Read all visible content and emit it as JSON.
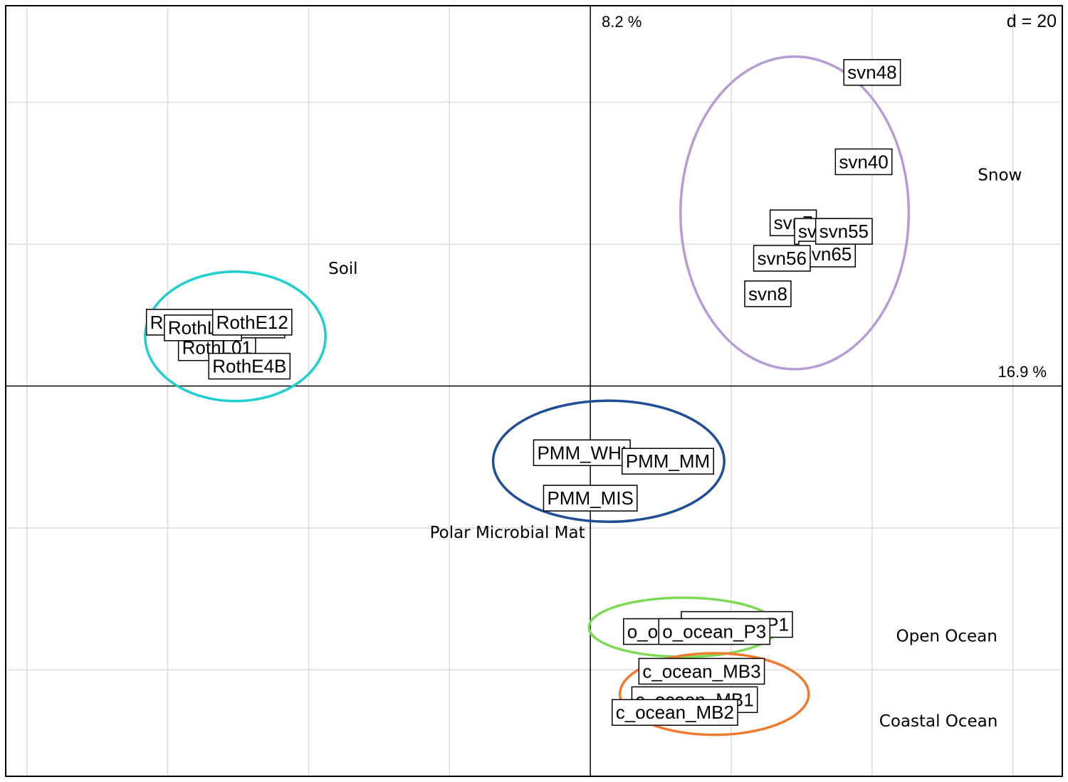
{
  "chart_data": {
    "type": "scatter",
    "title": "",
    "xlabel": "",
    "ylabel": "",
    "xlim": [
      -41.5,
      33.5
    ],
    "ylim": [
      -27.5,
      26.8
    ],
    "grid": true,
    "grid_spacing": 10,
    "scale_label": "d = 20",
    "axis1_label": "16.9 %",
    "axis2_label": "8.2 %",
    "groups": [
      {
        "name": "Soil",
        "color": "#1fcfcf",
        "ellipse": {
          "cx": -25.2,
          "cy": 3.5,
          "rx": 6.4,
          "ry": 4.6
        },
        "label_pos": [
          -18.6,
          8.3
        ],
        "points": [
          {
            "label": "RothL01",
            "x": -26.5,
            "y": 2.7
          },
          {
            "label": "RothE48",
            "x": -24.5,
            "y": 4.3
          },
          {
            "label": "RothE4B",
            "x": -24.2,
            "y": 1.4
          },
          {
            "label": "RothE27",
            "x": -28.7,
            "y": 4.5
          },
          {
            "label": "RothL27",
            "x": -27.5,
            "y": 4.1
          },
          {
            "label": "RothE12",
            "x": -24.0,
            "y": 4.5
          }
        ]
      },
      {
        "name": "Snow",
        "color": "#b79bd4",
        "ellipse": {
          "cx": 14.5,
          "cy": 12.2,
          "rx": 8.1,
          "ry": 11.1
        },
        "label_pos": [
          27.5,
          14.9
        ],
        "points": [
          {
            "label": "svn48",
            "x": 20.0,
            "y": 22.1
          },
          {
            "label": "svn40",
            "x": 19.4,
            "y": 15.8
          },
          {
            "label": "svn7",
            "x": 14.4,
            "y": 11.5
          },
          {
            "label": "svn64",
            "x": 16.5,
            "y": 10.9
          },
          {
            "label": "svn65",
            "x": 16.8,
            "y": 9.3
          },
          {
            "label": "svn56",
            "x": 13.6,
            "y": 9.0
          },
          {
            "label": "svn8",
            "x": 12.6,
            "y": 6.5
          },
          {
            "label": "svn55",
            "x": 18.0,
            "y": 10.9
          }
        ]
      },
      {
        "name": "Polar Microbial Mat",
        "color": "#1f4e96",
        "ellipse": {
          "cx": 1.3,
          "cy": -5.3,
          "rx": 8.2,
          "ry": 4.3
        },
        "label_pos": [
          -11.4,
          -10.3
        ],
        "points": [
          {
            "label": "PMM_WHI",
            "x": -0.6,
            "y": -4.7
          },
          {
            "label": "PMM_MM",
            "x": 5.5,
            "y": -5.3
          },
          {
            "label": "PMM_MIS",
            "x": 0.0,
            "y": -7.9
          }
        ]
      },
      {
        "name": "Open Ocean",
        "color": "#7ed957",
        "ellipse": {
          "cx": 6.6,
          "cy": -17.0,
          "rx": 6.7,
          "ry": 2.1
        },
        "label_pos": [
          21.7,
          -17.6
        ],
        "points": [
          {
            "label": "o_ocean_P1",
            "x": 10.4,
            "y": -16.8
          },
          {
            "label": "o_ocean_P2",
            "x": 6.3,
            "y": -17.3
          },
          {
            "label": "o_ocean_P3",
            "x": 8.8,
            "y": -17.3
          }
        ]
      },
      {
        "name": "Coastal Ocean",
        "color": "#f07a2d",
        "ellipse": {
          "cx": 8.8,
          "cy": -21.7,
          "rx": 6.7,
          "ry": 2.9
        },
        "label_pos": [
          20.5,
          -23.6
        ],
        "points": [
          {
            "label": "c_ocean_MB3",
            "x": 7.9,
            "y": -20.1
          },
          {
            "label": "c_ocean_MB1",
            "x": 7.4,
            "y": -22.1
          },
          {
            "label": "c_ocean_MB2",
            "x": 6.0,
            "y": -23.0
          }
        ]
      }
    ]
  }
}
